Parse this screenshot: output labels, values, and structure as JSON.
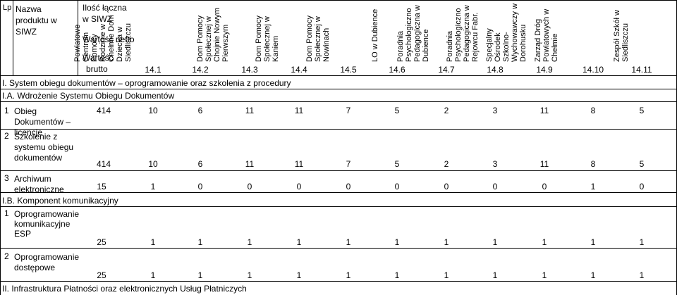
{
  "header": {
    "lp": "Lp",
    "name": "Nazwa produktu w SIWZ",
    "qty_line1": "Ilość łączna",
    "qty_line2": "w SIWZ",
    "net_value": "Wartość netto",
    "gross_line1": "Wartość",
    "gross_line2": "brutto",
    "columns": [
      {
        "label": "Powiatowe Centrum Pomocy Rodzinie w Chełmie Dom Dziecka w Siedliszczu",
        "code": "14.1"
      },
      {
        "label": "Dom Pomocy Społecznej w Chojnie Nowym Pierwszym",
        "code": "14.2"
      },
      {
        "label": "Dom Pomocy Społecznej w Kaniem",
        "code": "14.3"
      },
      {
        "label": "Dom Pomocy Społecznej w Nowinach",
        "code": "14.4"
      },
      {
        "label": "LO w Dubience",
        "code": "14.5"
      },
      {
        "label": "Poradnia Psychologiczno Pedagogiczna w Dubience",
        "code": "14.6"
      },
      {
        "label": "Poradnia Psychologiczno Pedagogiczna w Rejowcu Fabr.",
        "code": "14.7"
      },
      {
        "label": "Specjalny Ośrodek Szkolno-Wychowawczy w Dorohusku",
        "code": "14.8"
      },
      {
        "label": "Zarząd Dróg Powiatowych w Chełmie",
        "code": "14.9"
      },
      {
        "label": "Zespół Szkół w Siedliszczu",
        "code": "14.10"
      },
      {
        "label": "",
        "code": "14.11"
      }
    ]
  },
  "sections": {
    "s1": "I. System obiegu dokumentów – oprogramowanie oraz szkolenia z procedury",
    "s1a": "I.A. Wdrożenie Systemu Obiegu Dokumentów",
    "s1b": "I.B. Komponent komunikacyjny",
    "s2": "II. Infrastruktura  Płatności oraz elektronicznych Usług Płatniczych"
  },
  "rows": [
    {
      "lp": "1",
      "name": "Obieg Dokumentów – licencje",
      "qty": "414",
      "values": [
        "10",
        "6",
        "11",
        "11",
        "7",
        "5",
        "2",
        "3",
        "11",
        "8",
        "5"
      ]
    },
    {
      "lp": "2",
      "name": "Szkolenie z systemu obiegu dokumentów",
      "qty": "414",
      "values": [
        "10",
        "6",
        "11",
        "11",
        "7",
        "5",
        "2",
        "3",
        "11",
        "8",
        "5"
      ]
    },
    {
      "lp": "3",
      "name": "Archiwum elektroniczne",
      "qty": "15",
      "values": [
        "1",
        "0",
        "0",
        "0",
        "0",
        "0",
        "0",
        "0",
        "0",
        "1",
        "0"
      ]
    },
    {
      "lp": "1",
      "name": "Oprogramowanie komunikacyjne ESP",
      "qty": "25",
      "values": [
        "1",
        "1",
        "1",
        "1",
        "1",
        "1",
        "1",
        "1",
        "1",
        "1",
        "1"
      ]
    },
    {
      "lp": "2",
      "name": "Oprogramowanie dostępowe",
      "qty": "25",
      "values": [
        "1",
        "1",
        "1",
        "1",
        "1",
        "1",
        "1",
        "1",
        "1",
        "1",
        "1"
      ]
    }
  ]
}
